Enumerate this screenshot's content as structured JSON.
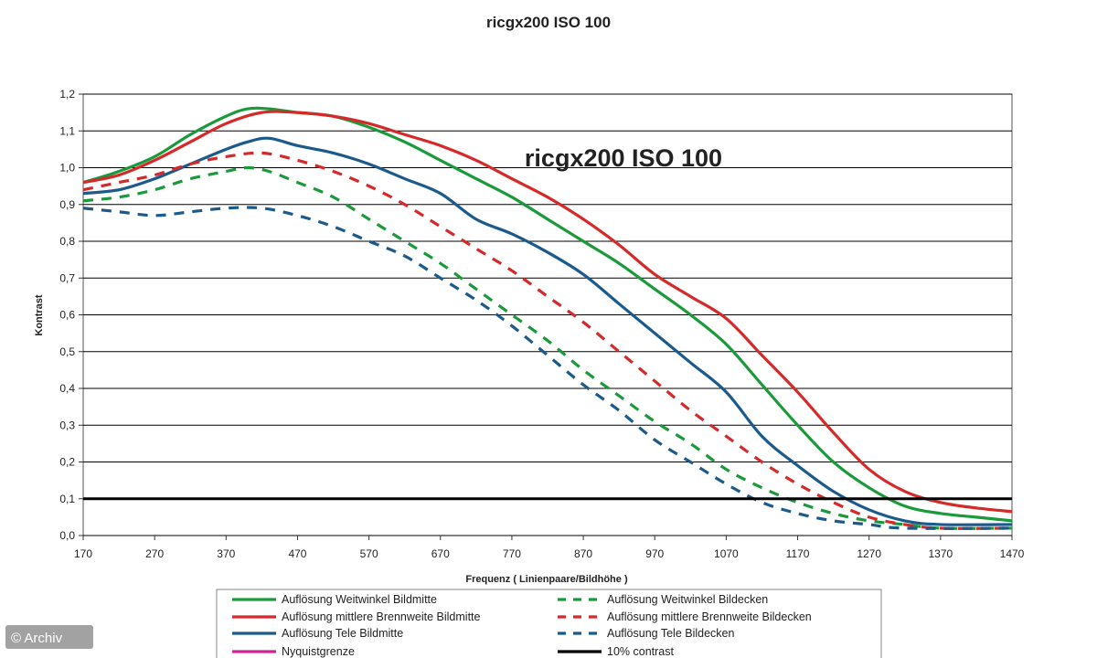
{
  "chart_data": {
    "type": "line",
    "title": "ricgx200 ISO 100",
    "inset_label": "ricgx200 ISO 100",
    "xlabel": "Frequenz ( Linienpaare/Bildhöhe )",
    "ylabel": "Kontrast",
    "xlim": [
      170,
      1470
    ],
    "ylim": [
      0.0,
      1.2
    ],
    "x_ticks": [
      170,
      270,
      370,
      470,
      570,
      670,
      770,
      870,
      970,
      1070,
      1170,
      1270,
      1370,
      1470
    ],
    "x_tick_labels": [
      "170",
      "270",
      "370",
      "470",
      "570",
      "670",
      "770",
      "870",
      "970",
      "1070",
      "1170",
      "1270",
      "1370",
      "1470"
    ],
    "y_ticks": [
      0.0,
      0.1,
      0.2,
      0.3,
      0.4,
      0.5,
      0.6,
      0.7,
      0.8,
      0.9,
      1.0,
      1.1,
      1.2
    ],
    "y_tick_labels": [
      "0,0",
      "0,1",
      "0,2",
      "0,3",
      "0,4",
      "0,5",
      "0,6",
      "0,7",
      "0,8",
      "0,9",
      "1,0",
      "1,1",
      "1,2"
    ],
    "grid": "horizontal",
    "legend_position": "bottom",
    "series": [
      {
        "name": "Auflösung Weitwinkel Bildmitte",
        "color": "#1a9a3a",
        "dash": false,
        "points": [
          [
            170,
            0.96
          ],
          [
            220,
            0.99
          ],
          [
            270,
            1.03
          ],
          [
            320,
            1.09
          ],
          [
            370,
            1.14
          ],
          [
            400,
            1.16
          ],
          [
            430,
            1.16
          ],
          [
            470,
            1.15
          ],
          [
            520,
            1.14
          ],
          [
            570,
            1.11
          ],
          [
            620,
            1.07
          ],
          [
            670,
            1.02
          ],
          [
            720,
            0.97
          ],
          [
            770,
            0.92
          ],
          [
            820,
            0.86
          ],
          [
            870,
            0.8
          ],
          [
            920,
            0.74
          ],
          [
            970,
            0.67
          ],
          [
            1020,
            0.6
          ],
          [
            1070,
            0.52
          ],
          [
            1120,
            0.41
          ],
          [
            1170,
            0.3
          ],
          [
            1220,
            0.2
          ],
          [
            1270,
            0.13
          ],
          [
            1320,
            0.08
          ],
          [
            1370,
            0.06
          ],
          [
            1420,
            0.05
          ],
          [
            1470,
            0.04
          ]
        ]
      },
      {
        "name": "Auflösung mittlere Brennweite Bildmitte",
        "color": "#d42a2a",
        "dash": false,
        "points": [
          [
            170,
            0.96
          ],
          [
            220,
            0.98
          ],
          [
            270,
            1.02
          ],
          [
            320,
            1.07
          ],
          [
            370,
            1.12
          ],
          [
            420,
            1.15
          ],
          [
            470,
            1.15
          ],
          [
            520,
            1.14
          ],
          [
            570,
            1.12
          ],
          [
            620,
            1.09
          ],
          [
            670,
            1.06
          ],
          [
            720,
            1.02
          ],
          [
            770,
            0.97
          ],
          [
            820,
            0.92
          ],
          [
            870,
            0.86
          ],
          [
            920,
            0.79
          ],
          [
            970,
            0.71
          ],
          [
            1020,
            0.65
          ],
          [
            1070,
            0.59
          ],
          [
            1120,
            0.49
          ],
          [
            1170,
            0.39
          ],
          [
            1220,
            0.28
          ],
          [
            1270,
            0.18
          ],
          [
            1320,
            0.12
          ],
          [
            1370,
            0.09
          ],
          [
            1420,
            0.075
          ],
          [
            1470,
            0.065
          ]
        ]
      },
      {
        "name": "Auflösung Tele Bildmitte",
        "color": "#1c5a8c",
        "dash": false,
        "points": [
          [
            170,
            0.93
          ],
          [
            220,
            0.94
          ],
          [
            270,
            0.97
          ],
          [
            320,
            1.01
          ],
          [
            370,
            1.05
          ],
          [
            400,
            1.07
          ],
          [
            430,
            1.08
          ],
          [
            470,
            1.06
          ],
          [
            520,
            1.04
          ],
          [
            570,
            1.01
          ],
          [
            620,
            0.97
          ],
          [
            670,
            0.93
          ],
          [
            720,
            0.86
          ],
          [
            770,
            0.82
          ],
          [
            820,
            0.77
          ],
          [
            870,
            0.71
          ],
          [
            920,
            0.63
          ],
          [
            970,
            0.55
          ],
          [
            1020,
            0.47
          ],
          [
            1070,
            0.39
          ],
          [
            1120,
            0.27
          ],
          [
            1170,
            0.19
          ],
          [
            1220,
            0.12
          ],
          [
            1270,
            0.07
          ],
          [
            1320,
            0.04
          ],
          [
            1370,
            0.03
          ],
          [
            1470,
            0.03
          ]
        ]
      },
      {
        "name": "Auflösung Weitwinkel Bildecken",
        "color": "#1a9a3a",
        "dash": true,
        "points": [
          [
            170,
            0.91
          ],
          [
            220,
            0.92
          ],
          [
            270,
            0.94
          ],
          [
            320,
            0.97
          ],
          [
            370,
            0.99
          ],
          [
            400,
            1.0
          ],
          [
            430,
            0.99
          ],
          [
            470,
            0.96
          ],
          [
            520,
            0.92
          ],
          [
            570,
            0.86
          ],
          [
            620,
            0.8
          ],
          [
            670,
            0.74
          ],
          [
            720,
            0.67
          ],
          [
            770,
            0.6
          ],
          [
            820,
            0.53
          ],
          [
            870,
            0.45
          ],
          [
            920,
            0.38
          ],
          [
            970,
            0.31
          ],
          [
            1020,
            0.25
          ],
          [
            1070,
            0.18
          ],
          [
            1120,
            0.13
          ],
          [
            1170,
            0.09
          ],
          [
            1220,
            0.06
          ],
          [
            1270,
            0.04
          ],
          [
            1320,
            0.03
          ],
          [
            1370,
            0.02
          ],
          [
            1470,
            0.02
          ]
        ]
      },
      {
        "name": "Auflösung mittlere Brennweite Bildecken",
        "color": "#d42a2a",
        "dash": true,
        "points": [
          [
            170,
            0.94
          ],
          [
            220,
            0.96
          ],
          [
            270,
            0.98
          ],
          [
            320,
            1.01
          ],
          [
            370,
            1.03
          ],
          [
            420,
            1.04
          ],
          [
            470,
            1.02
          ],
          [
            520,
            0.99
          ],
          [
            570,
            0.95
          ],
          [
            620,
            0.9
          ],
          [
            670,
            0.84
          ],
          [
            720,
            0.78
          ],
          [
            770,
            0.72
          ],
          [
            820,
            0.65
          ],
          [
            870,
            0.58
          ],
          [
            920,
            0.5
          ],
          [
            970,
            0.42
          ],
          [
            1020,
            0.34
          ],
          [
            1070,
            0.27
          ],
          [
            1120,
            0.2
          ],
          [
            1170,
            0.14
          ],
          [
            1220,
            0.09
          ],
          [
            1270,
            0.05
          ],
          [
            1320,
            0.03
          ],
          [
            1370,
            0.02
          ],
          [
            1470,
            0.02
          ]
        ]
      },
      {
        "name": "Auflösung Tele Bildecken",
        "color": "#1c5a8c",
        "dash": true,
        "points": [
          [
            170,
            0.89
          ],
          [
            220,
            0.88
          ],
          [
            270,
            0.87
          ],
          [
            320,
            0.88
          ],
          [
            370,
            0.89
          ],
          [
            420,
            0.89
          ],
          [
            470,
            0.87
          ],
          [
            520,
            0.84
          ],
          [
            570,
            0.8
          ],
          [
            620,
            0.76
          ],
          [
            670,
            0.7
          ],
          [
            720,
            0.64
          ],
          [
            770,
            0.57
          ],
          [
            820,
            0.49
          ],
          [
            870,
            0.41
          ],
          [
            920,
            0.34
          ],
          [
            970,
            0.26
          ],
          [
            1020,
            0.2
          ],
          [
            1070,
            0.14
          ],
          [
            1120,
            0.09
          ],
          [
            1170,
            0.06
          ],
          [
            1220,
            0.04
          ],
          [
            1270,
            0.03
          ],
          [
            1320,
            0.02
          ],
          [
            1470,
            0.02
          ]
        ]
      },
      {
        "name": "10% contrast",
        "color": "#000000",
        "dash": false,
        "bold": true,
        "points": [
          [
            170,
            0.1
          ],
          [
            1470,
            0.1
          ]
        ]
      }
    ],
    "legend": [
      {
        "name": "Auflösung Weitwinkel Bildmitte",
        "color": "#1a9a3a",
        "dash": false
      },
      {
        "name": "Auflösung Weitwinkel Bildecken",
        "color": "#1a9a3a",
        "dash": true
      },
      {
        "name": "Auflösung mittlere Brennweite Bildmitte",
        "color": "#d42a2a",
        "dash": false
      },
      {
        "name": "Auflösung mittlere Brennweite Bildecken",
        "color": "#d42a2a",
        "dash": true
      },
      {
        "name": "Auflösung Tele Bildmitte",
        "color": "#1c5a8c",
        "dash": false
      },
      {
        "name": "Auflösung Tele Bildecken",
        "color": "#1c5a8c",
        "dash": true
      },
      {
        "name": "Nyquistgrenze",
        "color": "#d4239a",
        "dash": false
      },
      {
        "name": "10% contrast",
        "color": "#000000",
        "dash": false
      }
    ]
  },
  "credit": "© Archiv"
}
